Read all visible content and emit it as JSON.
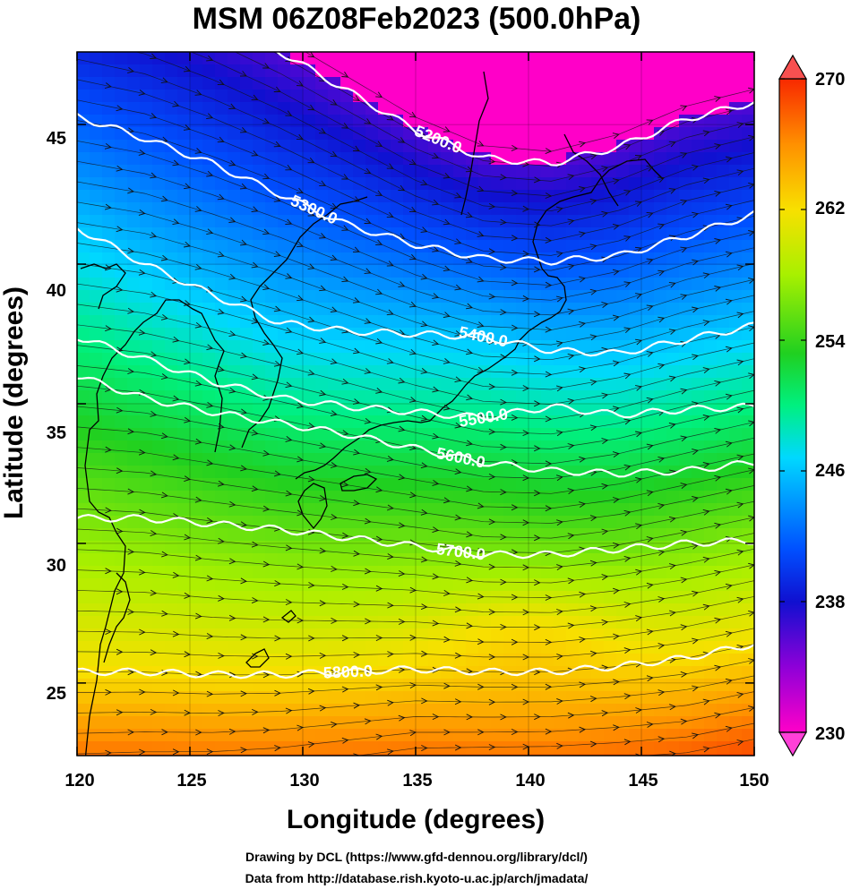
{
  "chart_data": {
    "type": "heatmap",
    "title": "MSM 06Z08Feb2023 (500.0hPa)",
    "xlabel": "Longitude (degrees)",
    "ylabel": "Latitude  (degrees)",
    "xlim": [
      120,
      150
    ],
    "ylim": [
      22.4,
      47.6
    ],
    "x_ticks": [
      "120",
      "125",
      "130",
      "135",
      "140",
      "145",
      "150"
    ],
    "y_ticks": [
      "45",
      "40",
      "35",
      "30",
      "25"
    ],
    "colorbar": {
      "min": 230,
      "max": 270,
      "ticks": [
        "270",
        "262",
        "254",
        "246",
        "238",
        "230"
      ],
      "colors": [
        "#ff00c8",
        "#8e00d8",
        "#1010d0",
        "#0050ff",
        "#00d8ff",
        "#00f080",
        "#20d020",
        "#a8f000",
        "#f8e000",
        "#ff9000",
        "#f82800"
      ]
    },
    "contours": [
      {
        "label": "5200.0",
        "lon": [
          120,
          123,
          126,
          129,
          132,
          135,
          138,
          141,
          144,
          147,
          150
        ],
        "lat": [
          50.4,
          49.8,
          48.8,
          47.6,
          46.2,
          44.8,
          43.8,
          43.6,
          44.2,
          45.2,
          45.8
        ]
      },
      {
        "label": "5300.0",
        "lon": [
          120,
          123,
          126,
          129,
          132,
          135,
          138,
          141,
          144,
          147,
          150
        ],
        "lat": [
          45.3,
          44.5,
          43.6,
          42.5,
          41.4,
          40.7,
          40.2,
          40.1,
          40.3,
          41.0,
          41.8
        ]
      },
      {
        "label": "5400.0",
        "lon": [
          120,
          123,
          126,
          129,
          132,
          135,
          138,
          141,
          144,
          147,
          150
        ],
        "lat": [
          41.3,
          40.0,
          38.9,
          37.9,
          37.6,
          37.5,
          37.4,
          36.9,
          36.8,
          37.3,
          37.8
        ]
      },
      {
        "label": "5500.0",
        "lon": [
          120,
          123,
          126,
          129,
          132,
          135,
          138,
          141,
          144,
          147,
          150
        ],
        "lat": [
          37.4,
          36.6,
          35.8,
          35.2,
          34.9,
          34.7,
          34.5,
          34.9,
          34.6,
          34.8,
          34.9
        ]
      },
      {
        "label": "5600.0",
        "lon": [
          120,
          123,
          126,
          129,
          132,
          135,
          138,
          141,
          144,
          147,
          150
        ],
        "lat": [
          36.0,
          35.2,
          34.7,
          34.3,
          33.9,
          33.4,
          32.9,
          32.6,
          32.5,
          32.6,
          32.9
        ]
      },
      {
        "label": "5700.0",
        "lon": [
          120,
          123,
          126,
          129,
          132,
          135,
          138,
          141,
          144,
          147,
          150
        ],
        "lat": [
          30.9,
          30.9,
          30.7,
          30.5,
          30.2,
          29.9,
          29.6,
          29.6,
          29.8,
          30.0,
          30.1
        ]
      },
      {
        "label": "5800.0",
        "lon": [
          120,
          123,
          126,
          129,
          132,
          135,
          138,
          141,
          144,
          147,
          150
        ],
        "lat": [
          25.4,
          25.4,
          25.3,
          25.3,
          25.4,
          25.5,
          25.4,
          25.4,
          25.6,
          25.9,
          26.4
        ]
      }
    ]
  },
  "credits": {
    "line1": "Drawing by DCL (https://www.gfd-dennou.org/library/dcl/)",
    "line2": "Data from http://database.rish.kyoto-u.ac.jp/arch/jmadata/"
  }
}
